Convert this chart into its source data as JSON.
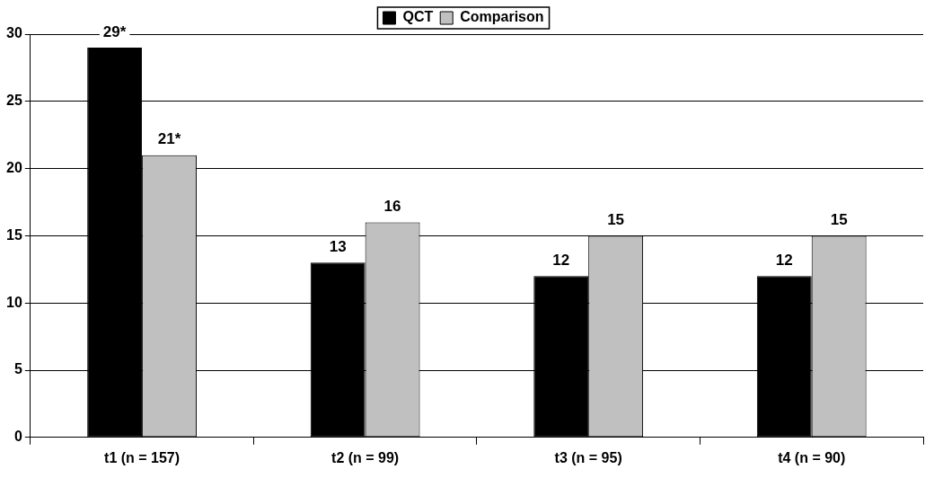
{
  "chart_data": {
    "type": "bar",
    "categories": [
      "t1 (n = 157)",
      "t2 (n = 99)",
      "t3 (n = 95)",
      "t4 (n = 90)"
    ],
    "series": [
      {
        "name": "QCT",
        "color": "#000000",
        "values": [
          29,
          13,
          12,
          12
        ],
        "value_labels": [
          "29*",
          "13",
          "12",
          "12"
        ]
      },
      {
        "name": "Comparison",
        "color": "#c0c0c0",
        "values": [
          21,
          16,
          15,
          15
        ],
        "value_labels": [
          "21*",
          "16",
          "15",
          "15"
        ]
      }
    ],
    "ylim": [
      0,
      30
    ],
    "yticks": [
      0,
      5,
      10,
      15,
      20,
      25,
      30
    ],
    "grid": "y",
    "legend": "top"
  }
}
